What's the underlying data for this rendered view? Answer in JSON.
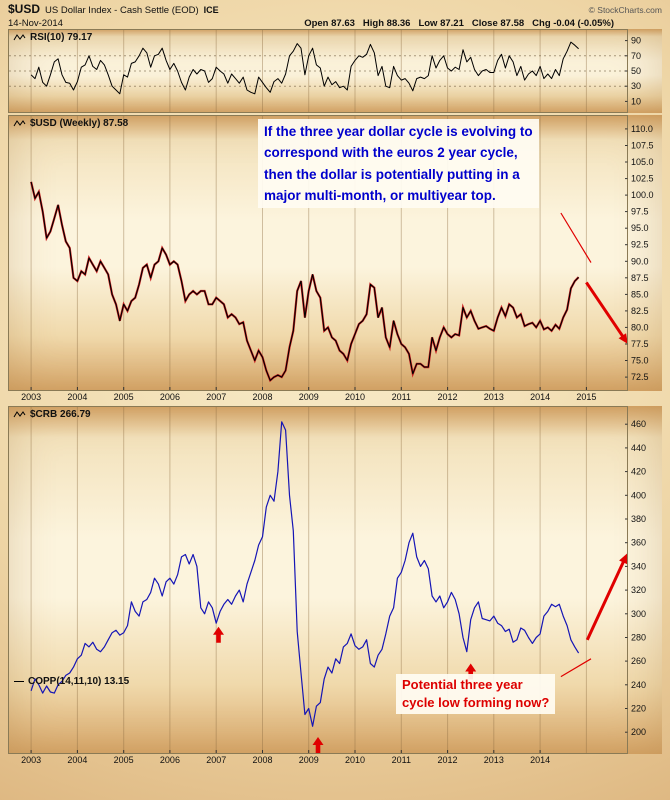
{
  "header": {
    "symbol": "$USD",
    "title": "US Dollar Index - Cash Settle (EOD)",
    "exchange": "ICE",
    "date": "14-Nov-2014",
    "copyright": "© StockCharts.com",
    "quote": [
      {
        "label": "Open",
        "value": "87.63"
      },
      {
        "label": "High",
        "value": "88.36"
      },
      {
        "label": "Low",
        "value": "87.21"
      },
      {
        "label": "Close",
        "value": "87.58"
      },
      {
        "label": "Chg",
        "value": "-0.04 (-0.05%)"
      }
    ]
  },
  "axes": {
    "top_years": [
      2003,
      2004,
      2005,
      2006,
      2007,
      2008,
      2009,
      2010,
      2011,
      2012,
      2013,
      2014,
      2015
    ],
    "bottom_years": [
      2003,
      2004,
      2005,
      2006,
      2007,
      2008,
      2009,
      2010,
      2011,
      2012,
      2013,
      2014
    ]
  },
  "chart_data": [
    {
      "id": "rsi",
      "type": "line",
      "label": "RSI(10) 79.17",
      "x_range": [
        2002.5,
        2015.9
      ],
      "ylim": [
        0,
        100
      ],
      "yticks": [
        90,
        70,
        50,
        30,
        10
      ],
      "hlines": [
        70,
        50,
        30
      ],
      "grid_years": [
        2003,
        2004,
        2005,
        2006,
        2007,
        2008,
        2009,
        2010,
        2011,
        2012,
        2013,
        2014,
        2015
      ],
      "series": [
        {
          "name": "RSI(10)",
          "color": "#000000",
          "width": 1,
          "x_start": 2003.0,
          "x_step": 0.08333,
          "values": [
            45,
            40,
            55,
            35,
            30,
            45,
            62,
            66,
            45,
            35,
            34,
            25,
            36,
            55,
            58,
            70,
            56,
            52,
            64,
            58,
            45,
            30,
            25,
            20,
            45,
            42,
            60,
            62,
            70,
            80,
            74,
            55,
            70,
            72,
            80,
            64,
            52,
            60,
            50,
            35,
            25,
            42,
            52,
            46,
            52,
            50,
            35,
            40,
            55,
            50,
            46,
            34,
            46,
            40,
            34,
            42,
            25,
            22,
            20,
            42,
            35,
            28,
            22,
            36,
            40,
            34,
            46,
            70,
            76,
            86,
            80,
            45,
            70,
            80,
            58,
            54,
            30,
            42,
            32,
            36,
            28,
            30,
            25,
            56,
            64,
            70,
            68,
            72,
            85,
            74,
            44,
            56,
            30,
            28,
            56,
            44,
            38,
            40,
            34,
            24,
            40,
            42,
            40,
            44,
            70,
            54,
            64,
            70,
            54,
            50,
            55,
            52,
            78,
            62,
            68,
            52,
            44,
            50,
            52,
            48,
            48,
            64,
            72,
            54,
            70,
            62,
            44,
            56,
            38,
            46,
            50,
            44,
            56,
            40,
            46,
            40,
            52,
            44,
            66,
            76,
            88,
            84,
            79.17
          ]
        }
      ]
    },
    {
      "id": "usd",
      "type": "line",
      "label": "$USD (Weekly) 87.58",
      "x_range": [
        2002.5,
        2015.9
      ],
      "ylim": [
        71,
        111.5
      ],
      "yticks": [
        "110.0",
        "107.5",
        "105.0",
        "102.5",
        "100.0",
        "97.5",
        "95.0",
        "92.5",
        "90.0",
        "87.5",
        "85.0",
        "82.5",
        "80.0",
        "77.5",
        "75.0",
        "72.5"
      ],
      "grid_years": [
        2003,
        2004,
        2005,
        2006,
        2007,
        2008,
        2009,
        2010,
        2011,
        2012,
        2013,
        2014,
        2015
      ],
      "xticks": [
        2003,
        2004,
        2005,
        2006,
        2007,
        2008,
        2009,
        2010,
        2011,
        2012,
        2013,
        2014,
        2015
      ],
      "series": [
        {
          "name": "$USD Weekly",
          "color": "#000000",
          "shadow": "#cc2222",
          "width": 1.1,
          "x_start": 2003.0,
          "x_step": 0.08333,
          "values": [
            102,
            99.5,
            100.5,
            97.5,
            93.5,
            94.5,
            96.5,
            98.5,
            95.5,
            93,
            92,
            87.5,
            87,
            88.5,
            88,
            90.5,
            89.5,
            88.5,
            90,
            89,
            88,
            85,
            83.5,
            81,
            83.5,
            82.5,
            84,
            84.5,
            86.5,
            89,
            89.5,
            87.5,
            89.5,
            90,
            92,
            91,
            89.5,
            90,
            89.5,
            87,
            84,
            85,
            85.5,
            85,
            85.5,
            85.5,
            83.5,
            83.5,
            84.5,
            84,
            83.5,
            81.5,
            82,
            81.5,
            80.5,
            80.8,
            78,
            76.5,
            75,
            76.5,
            75.5,
            73.5,
            72,
            72.5,
            72.8,
            72.5,
            73.5,
            77,
            79.5,
            85.5,
            87,
            81.5,
            85.5,
            88,
            85.5,
            84.5,
            79.5,
            80,
            78.5,
            78,
            76.5,
            76,
            75,
            77.5,
            79,
            80.5,
            81,
            82,
            86.5,
            86,
            81.5,
            83,
            78.5,
            77,
            81,
            79,
            77.5,
            77,
            76,
            73,
            74.5,
            74.5,
            74,
            74,
            78.5,
            76.5,
            78.5,
            80,
            79,
            78.5,
            79,
            78.8,
            83,
            81.5,
            82.5,
            81,
            79.8,
            80,
            80.2,
            79.8,
            79.5,
            81.5,
            83,
            81.7,
            83.5,
            83,
            81.5,
            82,
            80.2,
            80.5,
            80.7,
            80,
            81,
            79.7,
            80,
            79.5,
            80.4,
            79.8,
            81.5,
            82.7,
            85.9,
            87,
            87.6
          ]
        }
      ],
      "annotation": {
        "color": "#0000cc",
        "lines": [
          "If the three year dollar cycle is evolving to",
          "correspond with the euros 2 year cycle,",
          "then the dollar is potentially putting in a",
          "major multi-month, or multiyear top."
        ]
      },
      "pointer": [
        [
          2014.45,
          97.3
        ],
        [
          2015.1,
          89.8
        ]
      ],
      "trend_arrow": {
        "from": [
          2015.0,
          86.8
        ],
        "to": [
          2015.85,
          78
        ],
        "color": "#e00000",
        "width": 3
      }
    },
    {
      "id": "crb",
      "type": "line",
      "label": "$CRB 266.79",
      "sub_label": "COPP(14,11,10) 13.15",
      "x_range": [
        2002.5,
        2015.9
      ],
      "ylim": [
        185,
        472
      ],
      "yticks": [
        460,
        440,
        420,
        400,
        380,
        360,
        340,
        320,
        300,
        280,
        260,
        240,
        220,
        200
      ],
      "grid_years": [
        2003,
        2004,
        2005,
        2006,
        2007,
        2008,
        2009,
        2010,
        2011,
        2012,
        2013,
        2014,
        2015
      ],
      "xticks": [
        2003,
        2004,
        2005,
        2006,
        2007,
        2008,
        2009,
        2010,
        2011,
        2012,
        2013,
        2014
      ],
      "series": [
        {
          "name": "$CRB",
          "color": "#1515b5",
          "width": 1.2,
          "x_start": 2003.0,
          "x_step": 0.08333,
          "values": [
            235,
            245,
            240,
            233,
            239,
            234,
            233,
            240,
            243,
            248,
            250,
            255,
            262,
            265,
            275,
            272,
            276,
            270,
            268,
            272,
            278,
            284,
            286,
            282,
            284,
            290,
            310,
            302,
            298,
            310,
            312,
            318,
            330,
            325,
            315,
            327,
            330,
            325,
            333,
            348,
            350,
            342,
            350,
            340,
            305,
            300,
            310,
            305,
            292,
            302,
            308,
            312,
            308,
            315,
            320,
            310,
            325,
            335,
            345,
            358,
            365,
            390,
            400,
            395,
            420,
            462,
            455,
            400,
            370,
            285,
            250,
            215,
            220,
            205,
            222,
            225,
            245,
            255,
            250,
            262,
            258,
            272,
            275,
            283,
            273,
            270,
            272,
            278,
            258,
            255,
            265,
            270,
            283,
            298,
            305,
            330,
            335,
            345,
            360,
            368,
            348,
            340,
            345,
            338,
            315,
            310,
            315,
            305,
            310,
            318,
            312,
            300,
            280,
            268,
            295,
            305,
            310,
            296,
            295,
            294,
            298,
            292,
            290,
            285,
            287,
            276,
            278,
            288,
            286,
            280,
            275,
            280,
            283,
            298,
            302,
            308,
            306,
            308,
            298,
            290,
            278,
            272,
            266.79
          ]
        }
      ],
      "annotation": {
        "color": "#dd0000",
        "lines": [
          "Potential three year",
          "cycle low forming now?"
        ]
      },
      "pointer": [
        [
          2014.45,
          247
        ],
        [
          2015.1,
          262
        ]
      ],
      "up_arrows": [
        [
          2007.05,
          289
        ],
        [
          2009.2,
          196
        ],
        [
          2012.5,
          258
        ]
      ],
      "trend_arrow": {
        "from": [
          2015.02,
          278
        ],
        "to": [
          2015.85,
          348
        ],
        "color": "#e00000",
        "width": 3
      }
    }
  ]
}
